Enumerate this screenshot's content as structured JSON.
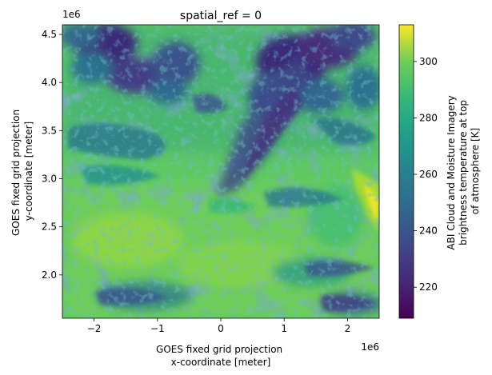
{
  "chart_data": {
    "type": "heatmap",
    "title": "spatial_ref = 0",
    "xlabel_lines": [
      "GOES fixed grid projection",
      "x-coordinate [meter]"
    ],
    "ylabel_lines": [
      "GOES fixed grid projection",
      "y-coordinate [meter]"
    ],
    "x_offset_text": "1e6",
    "y_offset_text": "1e6",
    "x_ticks": [
      {
        "value": -2,
        "label": "−2"
      },
      {
        "value": -1,
        "label": "−1"
      },
      {
        "value": 0,
        "label": "0"
      },
      {
        "value": 1,
        "label": "1"
      },
      {
        "value": 2,
        "label": "2"
      }
    ],
    "y_ticks": [
      {
        "value": 2.0,
        "label": "2.0"
      },
      {
        "value": 2.5,
        "label": "2.5"
      },
      {
        "value": 3.0,
        "label": "3.0"
      },
      {
        "value": 3.5,
        "label": "3.5"
      },
      {
        "value": 4.0,
        "label": "4.0"
      },
      {
        "value": 4.5,
        "label": "4.5"
      }
    ],
    "xlim": [
      -2.5,
      2.5
    ],
    "ylim": [
      1.55,
      4.6
    ],
    "colorbar": {
      "label_lines": [
        "ABI Cloud and Moisture Imagery",
        "brightness temperature at top",
        "of atmosphere [K]"
      ],
      "vmin": 209,
      "vmax": 313,
      "ticks": [
        {
          "value": 220,
          "label": "220"
        },
        {
          "value": 240,
          "label": "240"
        },
        {
          "value": 260,
          "label": "260"
        },
        {
          "value": 280,
          "label": "280"
        },
        {
          "value": 300,
          "label": "300"
        }
      ],
      "colormap": "viridis"
    }
  }
}
